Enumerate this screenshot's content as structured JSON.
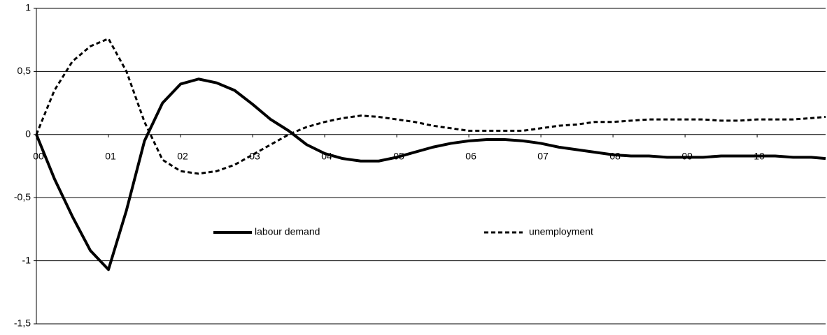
{
  "chart_data": {
    "type": "line",
    "x": [
      0,
      0.25,
      0.5,
      0.75,
      1,
      1.25,
      1.5,
      1.75,
      2,
      2.25,
      2.5,
      2.75,
      3,
      3.25,
      3.5,
      3.75,
      4,
      4.25,
      4.5,
      4.75,
      5,
      5.25,
      5.5,
      5.75,
      6,
      6.25,
      6.5,
      6.75,
      7,
      7.25,
      7.5,
      7.75,
      8,
      8.25,
      8.5,
      8.75,
      9,
      9.25,
      9.5,
      9.75,
      10,
      10.25,
      10.5,
      10.75,
      10.95
    ],
    "series": [
      {
        "name": "labour demand",
        "color": "#000000",
        "style": "solid",
        "values": [
          0,
          -0.35,
          -0.65,
          -0.92,
          -1.07,
          -0.6,
          -0.05,
          0.25,
          0.4,
          0.44,
          0.41,
          0.35,
          0.24,
          0.12,
          0.03,
          -0.08,
          -0.15,
          -0.19,
          -0.21,
          -0.21,
          -0.18,
          -0.14,
          -0.1,
          -0.07,
          -0.05,
          -0.04,
          -0.04,
          -0.05,
          -0.07,
          -0.1,
          -0.12,
          -0.14,
          -0.16,
          -0.17,
          -0.17,
          -0.18,
          -0.18,
          -0.18,
          -0.17,
          -0.17,
          -0.17,
          -0.17,
          -0.18,
          -0.18,
          -0.19
        ]
      },
      {
        "name": "unemployment",
        "color": "#000000",
        "style": "dashed",
        "values": [
          0,
          0.35,
          0.58,
          0.7,
          0.76,
          0.5,
          0.1,
          -0.2,
          -0.29,
          -0.31,
          -0.29,
          -0.24,
          -0.16,
          -0.08,
          0,
          0.06,
          0.1,
          0.13,
          0.15,
          0.14,
          0.12,
          0.1,
          0.07,
          0.05,
          0.03,
          0.03,
          0.03,
          0.03,
          0.05,
          0.07,
          0.08,
          0.1,
          0.1,
          0.11,
          0.12,
          0.12,
          0.12,
          0.12,
          0.11,
          0.11,
          0.12,
          0.12,
          0.12,
          0.13,
          0.14
        ]
      }
    ],
    "xlim": [
      0,
      10.95
    ],
    "xticks": [
      {
        "value": 0,
        "label": "00"
      },
      {
        "value": 1,
        "label": "01"
      },
      {
        "value": 2,
        "label": "02"
      },
      {
        "value": 3,
        "label": "03"
      },
      {
        "value": 4,
        "label": "04"
      },
      {
        "value": 5,
        "label": "05"
      },
      {
        "value": 6,
        "label": "06"
      },
      {
        "value": 7,
        "label": "07"
      },
      {
        "value": 8,
        "label": "08"
      },
      {
        "value": 9,
        "label": "09"
      },
      {
        "value": 10,
        "label": "10"
      }
    ],
    "ylim": [
      -1.5,
      1
    ],
    "yticks": [
      {
        "value": -1.5,
        "label": "-1,5"
      },
      -1,
      {
        "value": -0.5,
        "label": "-0,5"
      },
      0,
      {
        "value": 0.5,
        "label": "0,5"
      },
      1
    ],
    "grid": true
  }
}
